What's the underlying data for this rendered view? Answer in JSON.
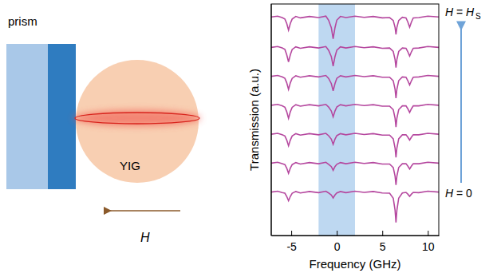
{
  "chart_data": {
    "type": "line",
    "x_label": "Frequency (GHz)",
    "y_label": "Transmission (a.u.)",
    "xlim": [
      -7.2,
      11.2
    ],
    "xticks": [
      -5,
      0,
      5,
      10
    ],
    "ylim": [
      0,
      8
    ],
    "tick_labels": "x",
    "grid": false,
    "shaded_band": {
      "x": [
        -2,
        2
      ],
      "color": "#b3d1ee"
    },
    "annotations": [
      {
        "text": "H = H",
        "subscript": "S",
        "position": "top"
      },
      {
        "text": "H = 0",
        "position": "bottom"
      }
    ],
    "x": [
      -7.2,
      -6.5,
      -6,
      -5.7,
      -5.5,
      -5.3,
      -5.1,
      -4.9,
      -4.5,
      -4,
      -3,
      -2,
      -1.2,
      -0.9,
      -0.6,
      -0.4,
      -0.2,
      0,
      0.4,
      1,
      2,
      3,
      4,
      5,
      5.8,
      6.2,
      6.4,
      6.5,
      6.6,
      6.8,
      7.2,
      7.6,
      7.8,
      8,
      8.2,
      8.4,
      9,
      10,
      11.2
    ],
    "series": [
      {
        "color": "#b5489f",
        "values": [
          1.5,
          1.53,
          1.48,
          1.46,
          1.35,
          1.2,
          1.35,
          1.46,
          1.52,
          1.47,
          1.52,
          1.48,
          1.53,
          1.47,
          1.4,
          1.3,
          1.4,
          1.47,
          1.52,
          1.48,
          1.53,
          1.49,
          1.52,
          1.47,
          1.46,
          1.29,
          0.87,
          0.45,
          0.87,
          1.29,
          1.47,
          1.49,
          1.43,
          1.35,
          1.43,
          1.49,
          1.48,
          1.53,
          1.5
        ]
      },
      {
        "color": "#b5489f",
        "values": [
          2.5,
          2.53,
          2.48,
          2.45,
          2.33,
          2.15,
          2.33,
          2.45,
          2.52,
          2.47,
          2.52,
          2.48,
          2.53,
          2.46,
          2.38,
          2.25,
          2.38,
          2.46,
          2.52,
          2.48,
          2.53,
          2.49,
          2.52,
          2.47,
          2.47,
          2.35,
          2.05,
          1.75,
          2.05,
          2.35,
          2.48,
          2.48,
          2.4,
          2.3,
          2.4,
          2.48,
          2.48,
          2.53,
          2.5
        ]
      },
      {
        "color": "#b5489f",
        "values": [
          3.5,
          3.53,
          3.48,
          3.44,
          3.3,
          3.1,
          3.3,
          3.44,
          3.52,
          3.47,
          3.52,
          3.48,
          3.53,
          3.45,
          3.33,
          3.15,
          3.33,
          3.45,
          3.52,
          3.48,
          3.53,
          3.49,
          3.52,
          3.47,
          3.47,
          3.34,
          3.02,
          2.7,
          3.02,
          3.34,
          3.48,
          3.48,
          3.4,
          3.3,
          3.4,
          3.48,
          3.48,
          3.53,
          3.5
        ]
      },
      {
        "color": "#b5489f",
        "values": [
          4.5,
          4.53,
          4.48,
          4.43,
          4.28,
          4.05,
          4.28,
          4.43,
          4.52,
          4.47,
          4.52,
          4.48,
          4.53,
          4.44,
          4.3,
          4.1,
          4.3,
          4.44,
          4.52,
          4.48,
          4.53,
          4.49,
          4.52,
          4.47,
          4.47,
          4.35,
          4.05,
          3.75,
          4.05,
          4.35,
          4.48,
          4.48,
          4.38,
          4.25,
          4.38,
          4.48,
          4.48,
          4.53,
          4.5
        ]
      },
      {
        "color": "#b5489f",
        "values": [
          5.5,
          5.53,
          5.48,
          5.43,
          5.28,
          5.05,
          5.28,
          5.43,
          5.52,
          5.47,
          5.52,
          5.48,
          5.53,
          5.43,
          5.25,
          5.0,
          5.25,
          5.43,
          5.52,
          5.48,
          5.53,
          5.49,
          5.52,
          5.47,
          5.47,
          5.35,
          5.05,
          4.75,
          5.05,
          5.35,
          5.48,
          5.47,
          5.35,
          5.2,
          5.35,
          5.47,
          5.48,
          5.53,
          5.5
        ]
      },
      {
        "color": "#b5489f",
        "values": [
          6.5,
          6.53,
          6.48,
          6.43,
          6.25,
          6.0,
          6.25,
          6.43,
          6.52,
          6.47,
          6.52,
          6.48,
          6.53,
          6.4,
          6.18,
          5.85,
          6.18,
          6.4,
          6.52,
          6.48,
          6.53,
          6.49,
          6.52,
          6.47,
          6.48,
          6.36,
          6.08,
          5.8,
          6.08,
          6.36,
          6.48,
          6.47,
          6.35,
          6.2,
          6.35,
          6.47,
          6.48,
          6.53,
          6.5
        ]
      },
      {
        "color": "#b5489f",
        "values": [
          7.55,
          7.58,
          7.53,
          7.48,
          7.33,
          7.1,
          7.33,
          7.48,
          7.57,
          7.52,
          7.57,
          7.53,
          7.58,
          7.44,
          7.18,
          6.8,
          7.18,
          7.44,
          7.57,
          7.53,
          7.58,
          7.54,
          7.57,
          7.52,
          7.53,
          7.43,
          7.19,
          6.95,
          7.19,
          7.43,
          7.54,
          7.52,
          7.38,
          7.2,
          7.38,
          7.52,
          7.53,
          7.58,
          7.55
        ]
      }
    ]
  },
  "diagram": {
    "prism_label": "prism",
    "sphere_label": "YIG",
    "field_label": "H"
  }
}
